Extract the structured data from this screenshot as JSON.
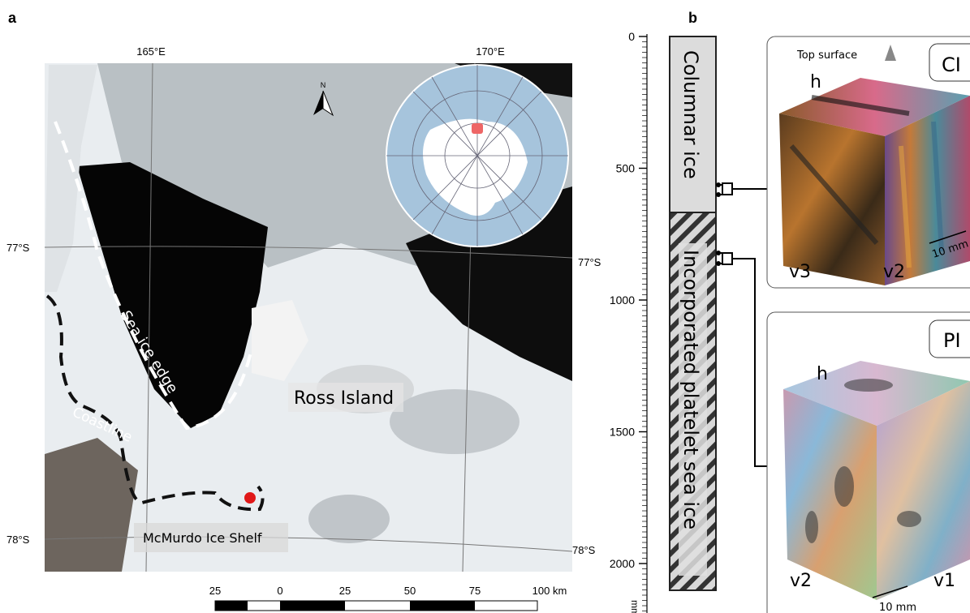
{
  "panel_a": {
    "label": "a",
    "lon_labels": [
      "165°E",
      "170°E"
    ],
    "lat_labels_left": [
      "77°S",
      "78°S"
    ],
    "lat_labels_right": [
      "77°S",
      "78°S"
    ],
    "north": "N",
    "sea_ice_edge": "Sea ice edge",
    "coastline": "Coastline",
    "ross_island": "Ross Island",
    "mcmurdo": "McMurdo Ice Shelf",
    "scale_labels": [
      "25",
      "0",
      "25",
      "50",
      "75",
      "100 km"
    ]
  },
  "panel_b": {
    "label": "b",
    "depth_ticks": [
      "0",
      "500",
      "1000",
      "1500",
      "2000"
    ],
    "unit": "mm",
    "columnar": "Columnar ice",
    "platelet": "Incorporated platelet sea ice",
    "ci": {
      "top_surface": "Top surface",
      "tag": "CI",
      "h": "h",
      "v3": "v3",
      "v2": "v2",
      "scale": "10 mm"
    },
    "pi": {
      "tag": "PI",
      "h": "h",
      "v2": "v2",
      "v1": "v1",
      "scale": "10 mm"
    }
  }
}
